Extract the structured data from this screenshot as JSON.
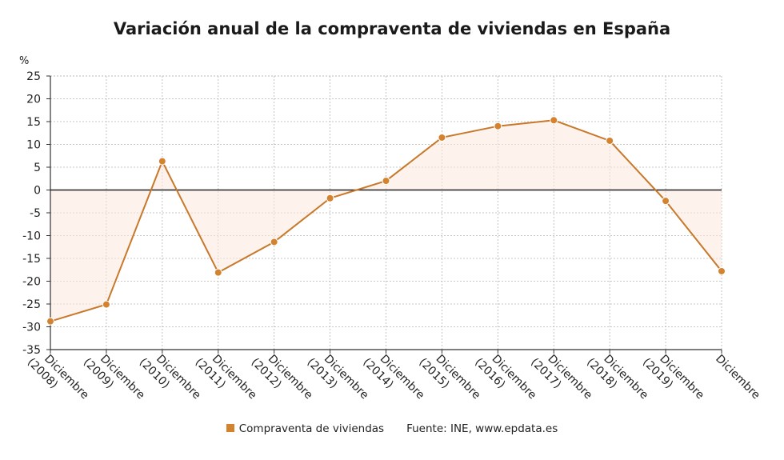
{
  "title": "Variación anual de la compraventa de viviendas en España",
  "legend": {
    "series_label": "Compraventa de viviendas",
    "source_label": "Fuente: INE, www.epdata.es"
  },
  "colors": {
    "line": "#c8782a",
    "point": "#d4822e",
    "fill": "#fbe8dc",
    "grid": "#b5b5b5",
    "zero": "#222222"
  },
  "chart_data": {
    "type": "line",
    "title": "Variación anual de la compraventa de viviendas en España",
    "ylabel": "%",
    "xlabel": "",
    "ylim": [
      -35,
      25
    ],
    "yticks": [
      25,
      20,
      15,
      10,
      5,
      0,
      -5,
      -10,
      -15,
      -20,
      -25,
      -30,
      -35
    ],
    "categories": [
      "Diciembre (2008)",
      "Diciembre (2009)",
      "Diciembre (2010)",
      "Diciembre (2011)",
      "Diciembre (2012)",
      "Diciembre (2013)",
      "Diciembre (2014)",
      "Diciembre (2015)",
      "Diciembre (2016)",
      "Diciembre (2017)",
      "Diciembre (2018)",
      "Diciembre (2019)",
      "Diciembre"
    ],
    "series": [
      {
        "name": "Compraventa de viviendas",
        "values": [
          -28.8,
          -25.1,
          6.3,
          -18.1,
          -11.4,
          -1.8,
          2.0,
          11.5,
          14.0,
          15.3,
          10.8,
          -2.4,
          -17.8
        ]
      }
    ],
    "grid": true,
    "legend_position": "bottom"
  }
}
